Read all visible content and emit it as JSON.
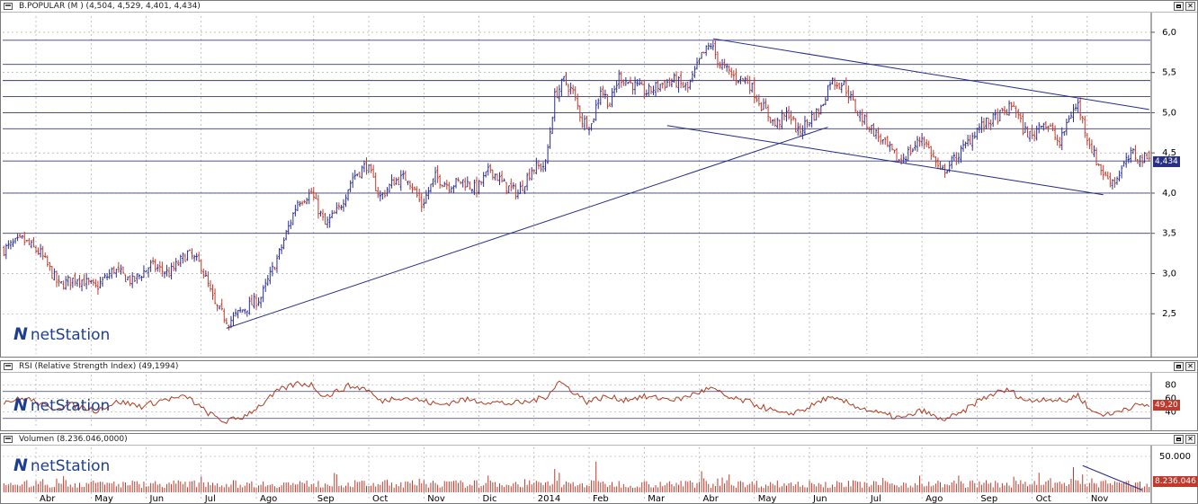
{
  "window": {
    "price_title": "B.POPULAR (M ) (4,504, 4,529, 4,401, 4,434)",
    "rsi_title": "RSI (Relative Strength Index) (49,1994)",
    "volume_title": "Volumen (8.236.046,0000)",
    "logo_text": "netStation"
  },
  "colors": {
    "up": "#2b2f8f",
    "down": "#c0392b",
    "grid": "#3a3a7a",
    "trend": "#1f2a8a",
    "rsi_line": "#b03a1e",
    "volume": "#c0392b",
    "badge_price": "#2a2f86",
    "badge_red": "#c0392b"
  },
  "months": [
    "Abr",
    "May",
    "Jun",
    "Jul",
    "Ago",
    "Sep",
    "Oct",
    "Nov",
    "Dic",
    "2014",
    "Feb",
    "Mar",
    "Abr",
    "May",
    "Jun",
    "Jul",
    "Ago",
    "Sep",
    "Oct",
    "Nov"
  ],
  "chart_data": [
    {
      "type": "ohlc",
      "title": "B.POPULAR (M ) (4,504, 4,529, 4,401, 4,434)",
      "last": {
        "open": 4.504,
        "high": 4.529,
        "low": 4.401,
        "close": 4.434
      },
      "last_label": "4,434",
      "ylim": [
        2.0,
        6.2
      ],
      "yticks": [
        "2,5",
        "3,0",
        "3,5",
        "4,0",
        "4,5",
        "5,0",
        "5,5",
        "6,0"
      ],
      "ytick_values": [
        2.5,
        3.0,
        3.5,
        4.0,
        4.5,
        5.0,
        5.5,
        6.0
      ],
      "horizontal_levels": [
        3.5,
        4.0,
        4.4,
        4.8,
        5.0,
        5.2,
        5.4,
        5.6,
        5.9
      ],
      "close_anchors": [
        [
          0,
          3.3
        ],
        [
          8,
          3.42
        ],
        [
          16,
          3.25
        ],
        [
          24,
          2.85
        ],
        [
          32,
          2.95
        ],
        [
          40,
          2.82
        ],
        [
          48,
          3.05
        ],
        [
          56,
          2.9
        ],
        [
          64,
          3.1
        ],
        [
          72,
          3.0
        ],
        [
          80,
          3.25
        ],
        [
          86,
          3.1
        ],
        [
          92,
          2.6
        ],
        [
          98,
          2.4
        ],
        [
          104,
          2.55
        ],
        [
          112,
          2.7
        ],
        [
          120,
          3.25
        ],
        [
          128,
          3.9
        ],
        [
          134,
          4.0
        ],
        [
          140,
          3.6
        ],
        [
          146,
          3.8
        ],
        [
          152,
          4.2
        ],
        [
          158,
          4.35
        ],
        [
          164,
          3.95
        ],
        [
          170,
          4.15
        ],
        [
          176,
          4.2
        ],
        [
          182,
          3.85
        ],
        [
          188,
          4.2
        ],
        [
          194,
          4.1
        ],
        [
          200,
          4.15
        ],
        [
          206,
          4.05
        ],
        [
          212,
          4.3
        ],
        [
          218,
          4.1
        ],
        [
          224,
          4.0
        ],
        [
          230,
          4.3
        ],
        [
          236,
          4.35
        ],
        [
          240,
          5.2
        ],
        [
          244,
          5.4
        ],
        [
          248,
          5.25
        ],
        [
          252,
          4.9
        ],
        [
          256,
          4.85
        ],
        [
          260,
          5.3
        ],
        [
          264,
          5.1
        ],
        [
          268,
          5.45
        ],
        [
          274,
          5.35
        ],
        [
          280,
          5.25
        ],
        [
          286,
          5.35
        ],
        [
          292,
          5.4
        ],
        [
          298,
          5.3
        ],
        [
          304,
          5.7
        ],
        [
          308,
          5.85
        ],
        [
          312,
          5.6
        ],
        [
          318,
          5.45
        ],
        [
          324,
          5.4
        ],
        [
          330,
          5.1
        ],
        [
          336,
          4.85
        ],
        [
          342,
          5.0
        ],
        [
          346,
          4.75
        ],
        [
          352,
          4.95
        ],
        [
          356,
          5.05
        ],
        [
          360,
          5.4
        ],
        [
          366,
          5.35
        ],
        [
          372,
          5.0
        ],
        [
          378,
          4.8
        ],
        [
          384,
          4.6
        ],
        [
          390,
          4.4
        ],
        [
          396,
          4.55
        ],
        [
          400,
          4.7
        ],
        [
          404,
          4.5
        ],
        [
          408,
          4.25
        ],
        [
          412,
          4.35
        ],
        [
          418,
          4.55
        ],
        [
          424,
          4.8
        ],
        [
          430,
          4.9
        ],
        [
          436,
          5.0
        ],
        [
          440,
          5.1
        ],
        [
          444,
          4.8
        ],
        [
          448,
          4.7
        ],
        [
          452,
          4.9
        ],
        [
          456,
          4.8
        ],
        [
          460,
          4.6
        ],
        [
          464,
          4.95
        ],
        [
          468,
          5.1
        ],
        [
          472,
          4.7
        ],
        [
          476,
          4.4
        ],
        [
          480,
          4.2
        ],
        [
          484,
          4.15
        ],
        [
          488,
          4.35
        ],
        [
          492,
          4.5
        ],
        [
          494,
          4.43
        ]
      ],
      "trendlines": [
        [
          [
            97,
            2.32
          ],
          [
            359,
            4.82
          ]
        ],
        [
          [
            309,
            5.92
          ],
          [
            499,
            5.04
          ]
        ],
        [
          [
            289,
            4.84
          ],
          [
            479,
            3.98
          ]
        ]
      ]
    },
    {
      "type": "line",
      "title": "RSI (Relative Strength Index) (49,1994)",
      "ylim": [
        15,
        95
      ],
      "yticks": [
        "40",
        "60",
        "80"
      ],
      "ytick_values": [
        40,
        60,
        80
      ],
      "last_label": "49,20",
      "rsi_anchors": [
        [
          0,
          55
        ],
        [
          10,
          60
        ],
        [
          20,
          45
        ],
        [
          30,
          50
        ],
        [
          40,
          42
        ],
        [
          50,
          55
        ],
        [
          60,
          48
        ],
        [
          70,
          58
        ],
        [
          80,
          62
        ],
        [
          88,
          40
        ],
        [
          96,
          25
        ],
        [
          104,
          32
        ],
        [
          112,
          50
        ],
        [
          120,
          72
        ],
        [
          128,
          82
        ],
        [
          134,
          80
        ],
        [
          140,
          62
        ],
        [
          150,
          78
        ],
        [
          158,
          74
        ],
        [
          164,
          55
        ],
        [
          172,
          62
        ],
        [
          180,
          58
        ],
        [
          190,
          50
        ],
        [
          200,
          58
        ],
        [
          210,
          55
        ],
        [
          220,
          52
        ],
        [
          228,
          54
        ],
        [
          236,
          62
        ],
        [
          242,
          85
        ],
        [
          248,
          70
        ],
        [
          254,
          55
        ],
        [
          262,
          62
        ],
        [
          270,
          58
        ],
        [
          278,
          62
        ],
        [
          286,
          60
        ],
        [
          294,
          58
        ],
        [
          302,
          68
        ],
        [
          308,
          75
        ],
        [
          316,
          60
        ],
        [
          324,
          55
        ],
        [
          332,
          45
        ],
        [
          340,
          35
        ],
        [
          350,
          45
        ],
        [
          358,
          60
        ],
        [
          366,
          55
        ],
        [
          374,
          45
        ],
        [
          384,
          35
        ],
        [
          392,
          30
        ],
        [
          400,
          42
        ],
        [
          408,
          28
        ],
        [
          416,
          35
        ],
        [
          424,
          55
        ],
        [
          432,
          68
        ],
        [
          438,
          72
        ],
        [
          446,
          55
        ],
        [
          454,
          60
        ],
        [
          462,
          55
        ],
        [
          468,
          65
        ],
        [
          474,
          40
        ],
        [
          482,
          35
        ],
        [
          488,
          45
        ],
        [
          494,
          49.2
        ]
      ]
    },
    {
      "type": "bar",
      "title": "Volumen (8.236.046,0000)",
      "ylim": [
        0,
        60000
      ],
      "yticks": [
        "50.000"
      ],
      "ytick_values": [
        50000
      ],
      "last_label": "8.236.046",
      "volume_baseline": 8,
      "volume_spikes": [
        [
          240,
          42
        ],
        [
          242,
          35
        ],
        [
          258,
          55
        ],
        [
          304,
          38
        ],
        [
          316,
          32
        ],
        [
          416,
          30
        ],
        [
          440,
          28
        ],
        [
          466,
          45
        ],
        [
          470,
          32
        ]
      ],
      "trendline": [
        [
          470,
          48
        ],
        [
          496,
          4
        ]
      ]
    }
  ]
}
